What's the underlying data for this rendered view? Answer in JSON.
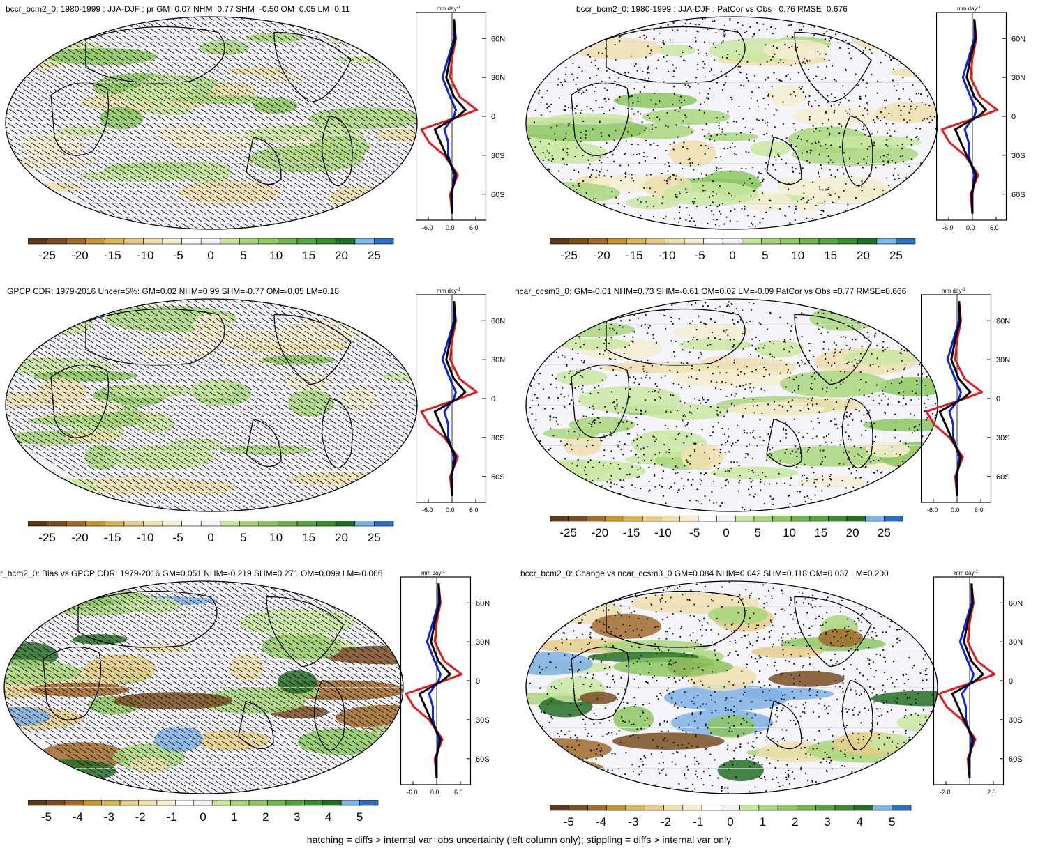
{
  "colors": {
    "colorbar": [
      "#5b3a1a",
      "#7a4e22",
      "#a06a2a",
      "#c49432",
      "#d9b458",
      "#e6cc88",
      "#efdfae",
      "#f6edd0",
      "#ffffff",
      "#f2f2fb",
      "#c9e6a1",
      "#a9d67c",
      "#8cc65f",
      "#6eb24a",
      "#56a23c",
      "#3c8a2f",
      "#266d24",
      "#7fb2e6",
      "#2c6fc0"
    ],
    "obs_line": "#e41a1c",
    "model_line": "#0a24e0",
    "mean_line": "#000000"
  },
  "panels": [
    {
      "title": "bccr_bcm2_0: 1980-1999 : JJA-DJF : pr GM=0.07 NHM=0.77 SHM=-0.50 OM=0.05 LM=0.11",
      "pattern": "hatch",
      "cbar_labels": [
        "-25",
        "-20",
        "-15",
        "-10",
        "-5",
        "0",
        "5",
        "10",
        "15",
        "20",
        "25"
      ],
      "profile_ticks": [
        "-6.0",
        "0.0",
        "6.0"
      ]
    },
    {
      "title": "bccr_bcm2_0: 1980-1999 : JJA-DJF : PatCor vs Obs =0.76 RMSE=0.676",
      "pattern": "stipple",
      "cbar_labels": [
        "-25",
        "-20",
        "-15",
        "-10",
        "-5",
        "0",
        "5",
        "10",
        "15",
        "20",
        "25"
      ],
      "profile_ticks": [
        "-6.0",
        "0.0",
        "6.0"
      ]
    },
    {
      "title": "GPCP CDR: 1979-2016 Uncer=5%: GM=0.02 NHM=0.99 SHM=-0.77 OM=-0.05 LM=0.18",
      "pattern": "hatch",
      "cbar_labels": [
        "-25",
        "-20",
        "-15",
        "-10",
        "-5",
        "0",
        "5",
        "10",
        "15",
        "20",
        "25"
      ],
      "profile_ticks": [
        "-6.0",
        "0.0",
        "6.0"
      ]
    },
    {
      "title": "ncar_ccsm3_0: GM=-0.01 NHM=0.73 SHM=-0.61 OM=0.02 LM=-0.09 PatCor vs Obs =0.77 RMSE=0.666",
      "pattern": "stipple",
      "cbar_labels": [
        "-25",
        "-20",
        "-15",
        "-10",
        "-5",
        "0",
        "5",
        "10",
        "15",
        "20",
        "25"
      ],
      "profile_ticks": [
        "-6.0",
        "0.0",
        "6.0"
      ]
    },
    {
      "title": "r_bcm2_0: Bias vs GPCP CDR: 1979-2016 GM=0.051 NHM=-0.219 SHM=0.271 OM=0.099 LM=-0.066",
      "pattern": "hatch",
      "cbar_labels": [
        "-5",
        "-4",
        "-3",
        "-2",
        "-1",
        "0",
        "1",
        "2",
        "3",
        "4",
        "5"
      ],
      "profile_ticks": [
        "-6.0",
        "0.0",
        "6.0"
      ]
    },
    {
      "title": "bccr_bcm2_0: Change vs ncar_ccsm3_0 GM=0.084 NHM=0.042 SHM=0.118 OM=0.037 LM=0.200",
      "pattern": "stipple",
      "cbar_labels": [
        "-5",
        "-4",
        "-3",
        "-2",
        "-1",
        "0",
        "1",
        "2",
        "3",
        "4",
        "5"
      ],
      "profile_ticks": [
        "-2.0",
        "2.0"
      ]
    }
  ],
  "profile_units": "mm day",
  "profile_units_sup": "-1",
  "lat_labels": [
    "60N",
    "30N",
    "0",
    "30S",
    "60S"
  ],
  "footnote": "hatching = diffs > internal var+obs uncertainty (left column only); stippling = diffs > internal var only",
  "chart_data": [
    {
      "type": "heatmap",
      "title": "bccr_bcm2_0: 1980-1999 : JJA-DJF : pr GM=0.07 NHM=0.77 SHM=-0.50 OM=0.05 LM=0.11",
      "colorbar_ticks": [
        -25,
        -20,
        -15,
        -10,
        -5,
        0,
        5,
        10,
        15,
        20,
        25
      ],
      "zonal_profile": {
        "lat": [
          75,
          60,
          45,
          30,
          15,
          5,
          0,
          -10,
          -20,
          -30,
          -45,
          -60,
          -75
        ],
        "series": [
          {
            "values": [
              0.5,
              1.0,
              0.0,
              -0.5,
              2.0,
              6.5,
              2.0,
              -8.0,
              -6.0,
              -2.0,
              1.5,
              -0.5,
              0.0
            ]
          },
          {
            "values": [
              0.5,
              0.5,
              -1.0,
              -2.5,
              -0.5,
              1.0,
              0.5,
              -2.0,
              -1.0,
              -1.0,
              0.5,
              0.0,
              0.0
            ]
          },
          {
            "values": [
              0.5,
              0.8,
              -0.5,
              -1.5,
              0.5,
              3.5,
              1.5,
              -4.5,
              -3.0,
              -1.5,
              1.0,
              -0.2,
              0.0
            ]
          }
        ]
      }
    },
    {
      "type": "heatmap",
      "title": "bccr_bcm2_0: 1980-1999 : JJA-DJF : PatCor vs Obs =0.76 RMSE=0.676",
      "colorbar_ticks": [
        -25,
        -20,
        -15,
        -10,
        -5,
        0,
        5,
        10,
        15,
        20,
        25
      ]
    },
    {
      "type": "heatmap",
      "title": "GPCP CDR: 1979-2016 Uncer=5%: GM=0.02 NHM=0.99 SHM=-0.77 OM=-0.05 LM=0.18",
      "colorbar_ticks": [
        -25,
        -20,
        -15,
        -10,
        -5,
        0,
        5,
        10,
        15,
        20,
        25
      ]
    },
    {
      "type": "heatmap",
      "title": "ncar_ccsm3_0: GM=-0.01 NHM=0.73 SHM=-0.61 OM=0.02 LM=-0.09 PatCor vs Obs =0.77 RMSE=0.666",
      "colorbar_ticks": [
        -25,
        -20,
        -15,
        -10,
        -5,
        0,
        5,
        10,
        15,
        20,
        25
      ]
    },
    {
      "type": "heatmap",
      "title": "r_bcm2_0: Bias vs GPCP CDR: 1979-2016 GM=0.051 NHM=-0.219 SHM=0.271 OM=0.099 LM=-0.066",
      "colorbar_ticks": [
        -5,
        -4,
        -3,
        -2,
        -1,
        0,
        1,
        2,
        3,
        4,
        5
      ]
    },
    {
      "type": "heatmap",
      "title": "bccr_bcm2_0: Change vs ncar_ccsm3_0 GM=0.084 NHM=0.042 SHM=0.118 OM=0.037 LM=0.200",
      "colorbar_ticks": [
        -5,
        -4,
        -3,
        -2,
        -1,
        0,
        1,
        2,
        3,
        4,
        5
      ]
    }
  ]
}
